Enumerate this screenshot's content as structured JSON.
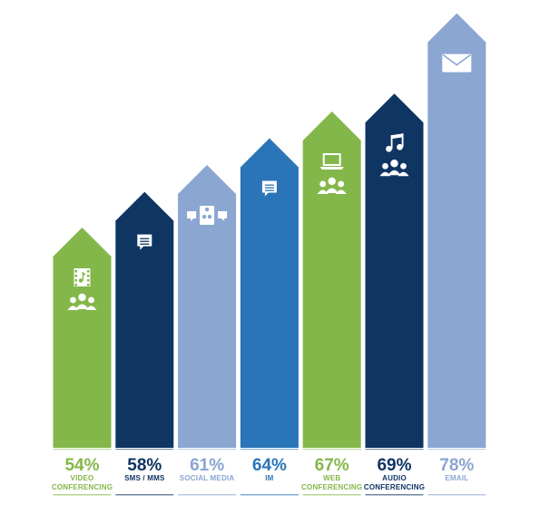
{
  "chart_data": {
    "type": "bar",
    "categories": [
      [
        "VIDEO",
        "CONFERENCING"
      ],
      [
        "SMS / MMS"
      ],
      [
        "SOCIAL MEDIA"
      ],
      [
        "IM"
      ],
      [
        "WEB",
        "CONFERENCING"
      ],
      [
        "AUDIO",
        "CONFERENCING"
      ],
      [
        "EMAIL"
      ]
    ],
    "values": [
      54,
      58,
      61,
      64,
      67,
      69,
      78
    ],
    "value_labels": [
      "54%",
      "58%",
      "61%",
      "64%",
      "67%",
      "69%",
      "78%"
    ],
    "colors": [
      "#84b74a",
      "#0f3563",
      "#8aa6d1",
      "#2a75b8",
      "#84b74a",
      "#0f3563",
      "#8aa6d1"
    ],
    "icons": [
      [
        "film-music-icon",
        "people-icon"
      ],
      [
        "chat-bubble-icon"
      ],
      [
        "social-media-icon"
      ],
      [
        "chat-bubble-icon"
      ],
      [
        "laptop-icon",
        "people-icon"
      ],
      [
        "music-note-icon",
        "people-icon"
      ],
      [
        "envelope-icon"
      ]
    ],
    "title": "",
    "xlabel": "",
    "ylabel": "",
    "grid": false,
    "legend": "none"
  }
}
